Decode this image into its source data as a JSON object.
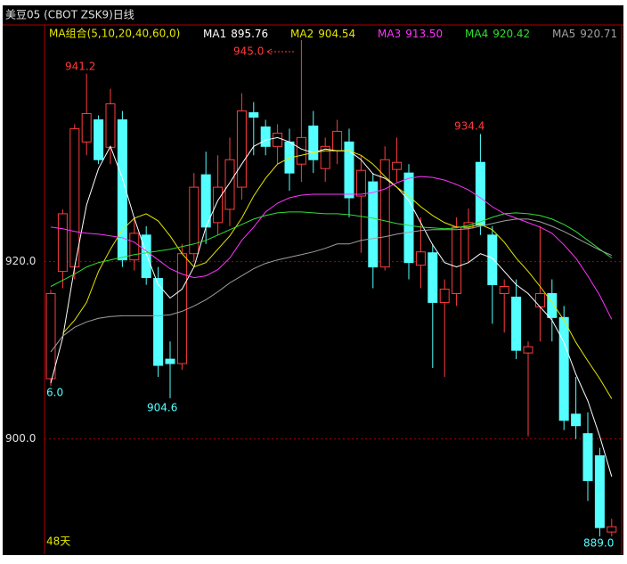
{
  "chart_data": {
    "type": "candlestick",
    "title": "美豆05  (CBOT ZSK9)日线",
    "legend_title": "MA组合(5,10,20,40,60,0)",
    "period_label": "48天",
    "ylim": [
      887,
      946.7
    ],
    "yticks": [
      {
        "value": 920,
        "label": "920.0"
      },
      {
        "value": 900,
        "label": "900.0"
      }
    ],
    "grid": true,
    "up_color": "#ff3c3c",
    "down_color": "#54ffff",
    "annotations": [
      "941.2",
      "945.0",
      "934.4",
      "904.6",
      "6.0",
      "889.0"
    ],
    "candles": {
      "open": [
        906.8,
        918.9,
        919.4,
        933.5,
        936.0,
        932.9,
        936.0,
        920.2,
        923.0,
        918.1,
        909.0,
        908.5,
        920.9,
        929.8,
        924.4,
        925.9,
        928.4,
        936.8,
        935.2,
        933.0,
        933.5,
        931.0,
        935.3,
        930.5,
        932.5,
        933.5,
        927.4,
        929.0,
        919.4,
        930.4,
        930.0,
        919.6,
        921.0,
        915.4,
        916.4,
        923.8,
        931.2,
        923.0,
        916.4,
        916.0,
        909.7,
        914.9,
        916.4,
        913.7,
        902.8,
        900.6,
        898.1,
        889.5
      ],
      "high": [
        916.8,
        925.9,
        935.5,
        941.2,
        936.5,
        939.5,
        937.0,
        925.0,
        924.0,
        919.4,
        911.0,
        922.0,
        930.0,
        932.4,
        932.0,
        934.0,
        939.0,
        938.0,
        936.0,
        935.5,
        935.0,
        945.0,
        937.0,
        934.0,
        936.0,
        935.0,
        932.0,
        930.0,
        933.0,
        934.0,
        931.0,
        925.0,
        922.0,
        918.0,
        925.0,
        926.0,
        934.4,
        924.0,
        918.0,
        918.0,
        911.0,
        924.0,
        918.0,
        915.0,
        907.0,
        903.0,
        899.0,
        891.0
      ],
      "low": [
        906.0,
        917.0,
        918.0,
        932.0,
        931.0,
        931.0,
        919.4,
        919.0,
        917.4,
        907.0,
        904.6,
        907.8,
        920.0,
        922.0,
        923.0,
        924.0,
        927.0,
        932.0,
        932.0,
        931.0,
        928.0,
        929.0,
        930.0,
        929.0,
        931.0,
        925.0,
        921.0,
        917.0,
        919.0,
        929.0,
        918.0,
        917.0,
        908.0,
        907.0,
        915.0,
        920.0,
        923.0,
        913.0,
        912.0,
        909.0,
        900.3,
        911.0,
        911.0,
        901.0,
        900.0,
        893.0,
        889.0,
        889.0
      ],
      "close": [
        916.4,
        925.4,
        935.0,
        936.7,
        931.5,
        937.8,
        920.2,
        923.2,
        918.2,
        908.3,
        908.5,
        920.9,
        928.4,
        923.9,
        928.4,
        931.5,
        937.0,
        936.3,
        933.0,
        934.5,
        930.0,
        934.0,
        931.5,
        933.0,
        934.7,
        927.2,
        930.3,
        919.4,
        931.5,
        931.2,
        919.9,
        921.1,
        915.4,
        916.9,
        923.9,
        924.4,
        924.1,
        917.4,
        917.2,
        910.0,
        910.4,
        916.4,
        913.7,
        902.1,
        901.5,
        895.3,
        890.0,
        890.1
      ]
    },
    "lines": [
      {
        "name": "MA1",
        "legend_value": "895.76",
        "color": "#ffffff",
        "values": [
          906.3,
          911.4,
          919.4,
          926.4,
          930.5,
          933.0,
          929.4,
          924.9,
          920.9,
          917.4,
          915.9,
          916.9,
          919.4,
          923.9,
          926.9,
          928.9,
          931.0,
          933.0,
          933.7,
          934.0,
          933.5,
          932.7,
          932.3,
          932.7,
          932.5,
          932.5,
          931.5,
          929.9,
          929.4,
          928.4,
          926.9,
          924.4,
          921.9,
          919.9,
          919.4,
          919.9,
          920.9,
          920.4,
          918.9,
          917.4,
          916.4,
          914.9,
          913.4,
          910.9,
          907.3,
          904.3,
          900.3,
          895.76
        ]
      },
      {
        "name": "MA2",
        "legend_value": "904.54",
        "color": "#e6e600",
        "values": [
          null,
          911.9,
          913.4,
          915.4,
          918.9,
          921.4,
          923.6,
          924.9,
          925.4,
          924.6,
          922.9,
          920.9,
          919.4,
          919.9,
          921.4,
          922.9,
          924.9,
          927.4,
          929.4,
          931.0,
          931.7,
          932.0,
          932.3,
          932.5,
          932.5,
          932.5,
          932.0,
          931.0,
          929.6,
          928.4,
          927.4,
          926.2,
          925.2,
          924.4,
          923.9,
          923.9,
          924.2,
          923.6,
          922.2,
          920.4,
          918.9,
          917.2,
          915.4,
          913.4,
          910.9,
          908.8,
          906.8,
          904.54
        ]
      },
      {
        "name": "MA3",
        "legend_value": "913.50",
        "color": "#ff33ff",
        "values": [
          923.9,
          923.7,
          923.4,
          923.2,
          923.1,
          922.9,
          922.7,
          922.2,
          921.2,
          920.2,
          919.2,
          918.6,
          918.2,
          918.4,
          919.1,
          920.4,
          922.4,
          923.9,
          925.6,
          926.6,
          927.2,
          927.5,
          927.6,
          927.6,
          927.6,
          927.6,
          927.6,
          927.8,
          928.2,
          928.9,
          929.4,
          929.6,
          929.5,
          929.2,
          928.7,
          928.1,
          927.2,
          926.2,
          925.4,
          924.9,
          924.4,
          923.9,
          923.2,
          921.9,
          920.4,
          918.4,
          916.2,
          913.5
        ]
      },
      {
        "name": "MA4",
        "legend_value": "920.42",
        "color": "#33dd33",
        "values": [
          917.2,
          917.9,
          918.6,
          919.4,
          919.9,
          920.2,
          920.5,
          920.8,
          921.0,
          921.2,
          921.4,
          921.7,
          922.0,
          922.4,
          923.0,
          923.6,
          924.2,
          924.8,
          925.2,
          925.5,
          925.6,
          925.6,
          925.5,
          925.4,
          925.4,
          925.3,
          925.1,
          924.9,
          924.6,
          924.3,
          924.1,
          923.9,
          923.8,
          923.7,
          923.8,
          924.1,
          924.5,
          925.0,
          925.4,
          925.5,
          925.4,
          925.2,
          924.8,
          924.2,
          923.4,
          922.4,
          921.4,
          920.42
        ]
      },
      {
        "name": "MA5",
        "legend_value": "920.71",
        "color": "#a0a0a0",
        "values": [
          909.8,
          911.6,
          912.6,
          913.2,
          913.6,
          913.8,
          913.9,
          913.9,
          913.9,
          913.9,
          914.0,
          914.4,
          915.0,
          915.7,
          916.6,
          917.6,
          918.4,
          919.2,
          919.8,
          920.2,
          920.5,
          920.8,
          921.1,
          921.5,
          922.0,
          922.0,
          922.4,
          922.6,
          922.8,
          923.1,
          923.3,
          923.5,
          923.6,
          923.6,
          923.6,
          923.7,
          924.0,
          924.3,
          924.6,
          924.8,
          924.8,
          924.5,
          924.0,
          923.4,
          922.7,
          922.0,
          921.3,
          920.71
        ]
      }
    ]
  }
}
